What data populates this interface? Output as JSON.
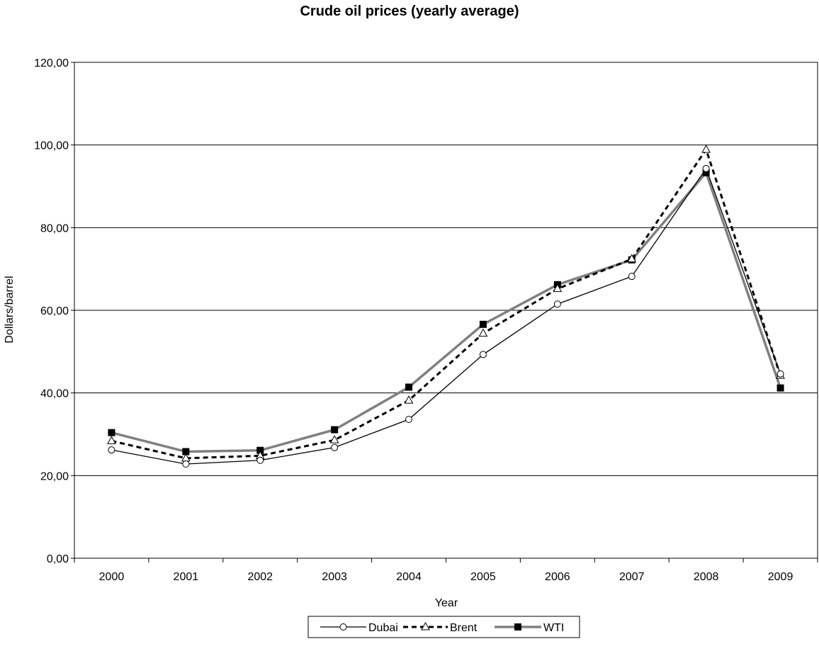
{
  "chart_data": {
    "type": "line",
    "title": "Crude oil prices (yearly average)",
    "xlabel": "Year",
    "ylabel": "Dollars/barrel",
    "categories": [
      "2000",
      "2001",
      "2002",
      "2003",
      "2004",
      "2005",
      "2006",
      "2007",
      "2008",
      "2009"
    ],
    "ylim": [
      0,
      120
    ],
    "yticks": [
      0,
      20,
      40,
      60,
      80,
      100,
      120
    ],
    "ytick_labels": [
      "0,00",
      "20,00",
      "40,00",
      "60,00",
      "80,00",
      "100,00",
      "120,00"
    ],
    "grid": "horizontal",
    "legend_position": "bottom",
    "series": [
      {
        "name": "Dubai",
        "values": [
          26.2,
          22.8,
          23.7,
          26.8,
          33.6,
          49.3,
          61.5,
          68.2,
          94.3,
          44.6
        ],
        "color": "#000000",
        "line_style": "solid",
        "marker": "circle"
      },
      {
        "name": "Brent",
        "values": [
          28.4,
          24.2,
          24.8,
          28.6,
          38.2,
          54.4,
          65.2,
          72.4,
          98.9,
          44.2
        ],
        "color": "#000000",
        "line_style": "dashed",
        "marker": "triangle"
      },
      {
        "name": "WTI",
        "values": [
          30.4,
          25.8,
          26.1,
          31.1,
          41.4,
          56.6,
          66.2,
          72.2,
          93.3,
          41.2
        ],
        "color": "#808080",
        "line_style": "solid",
        "marker": "square"
      }
    ]
  }
}
